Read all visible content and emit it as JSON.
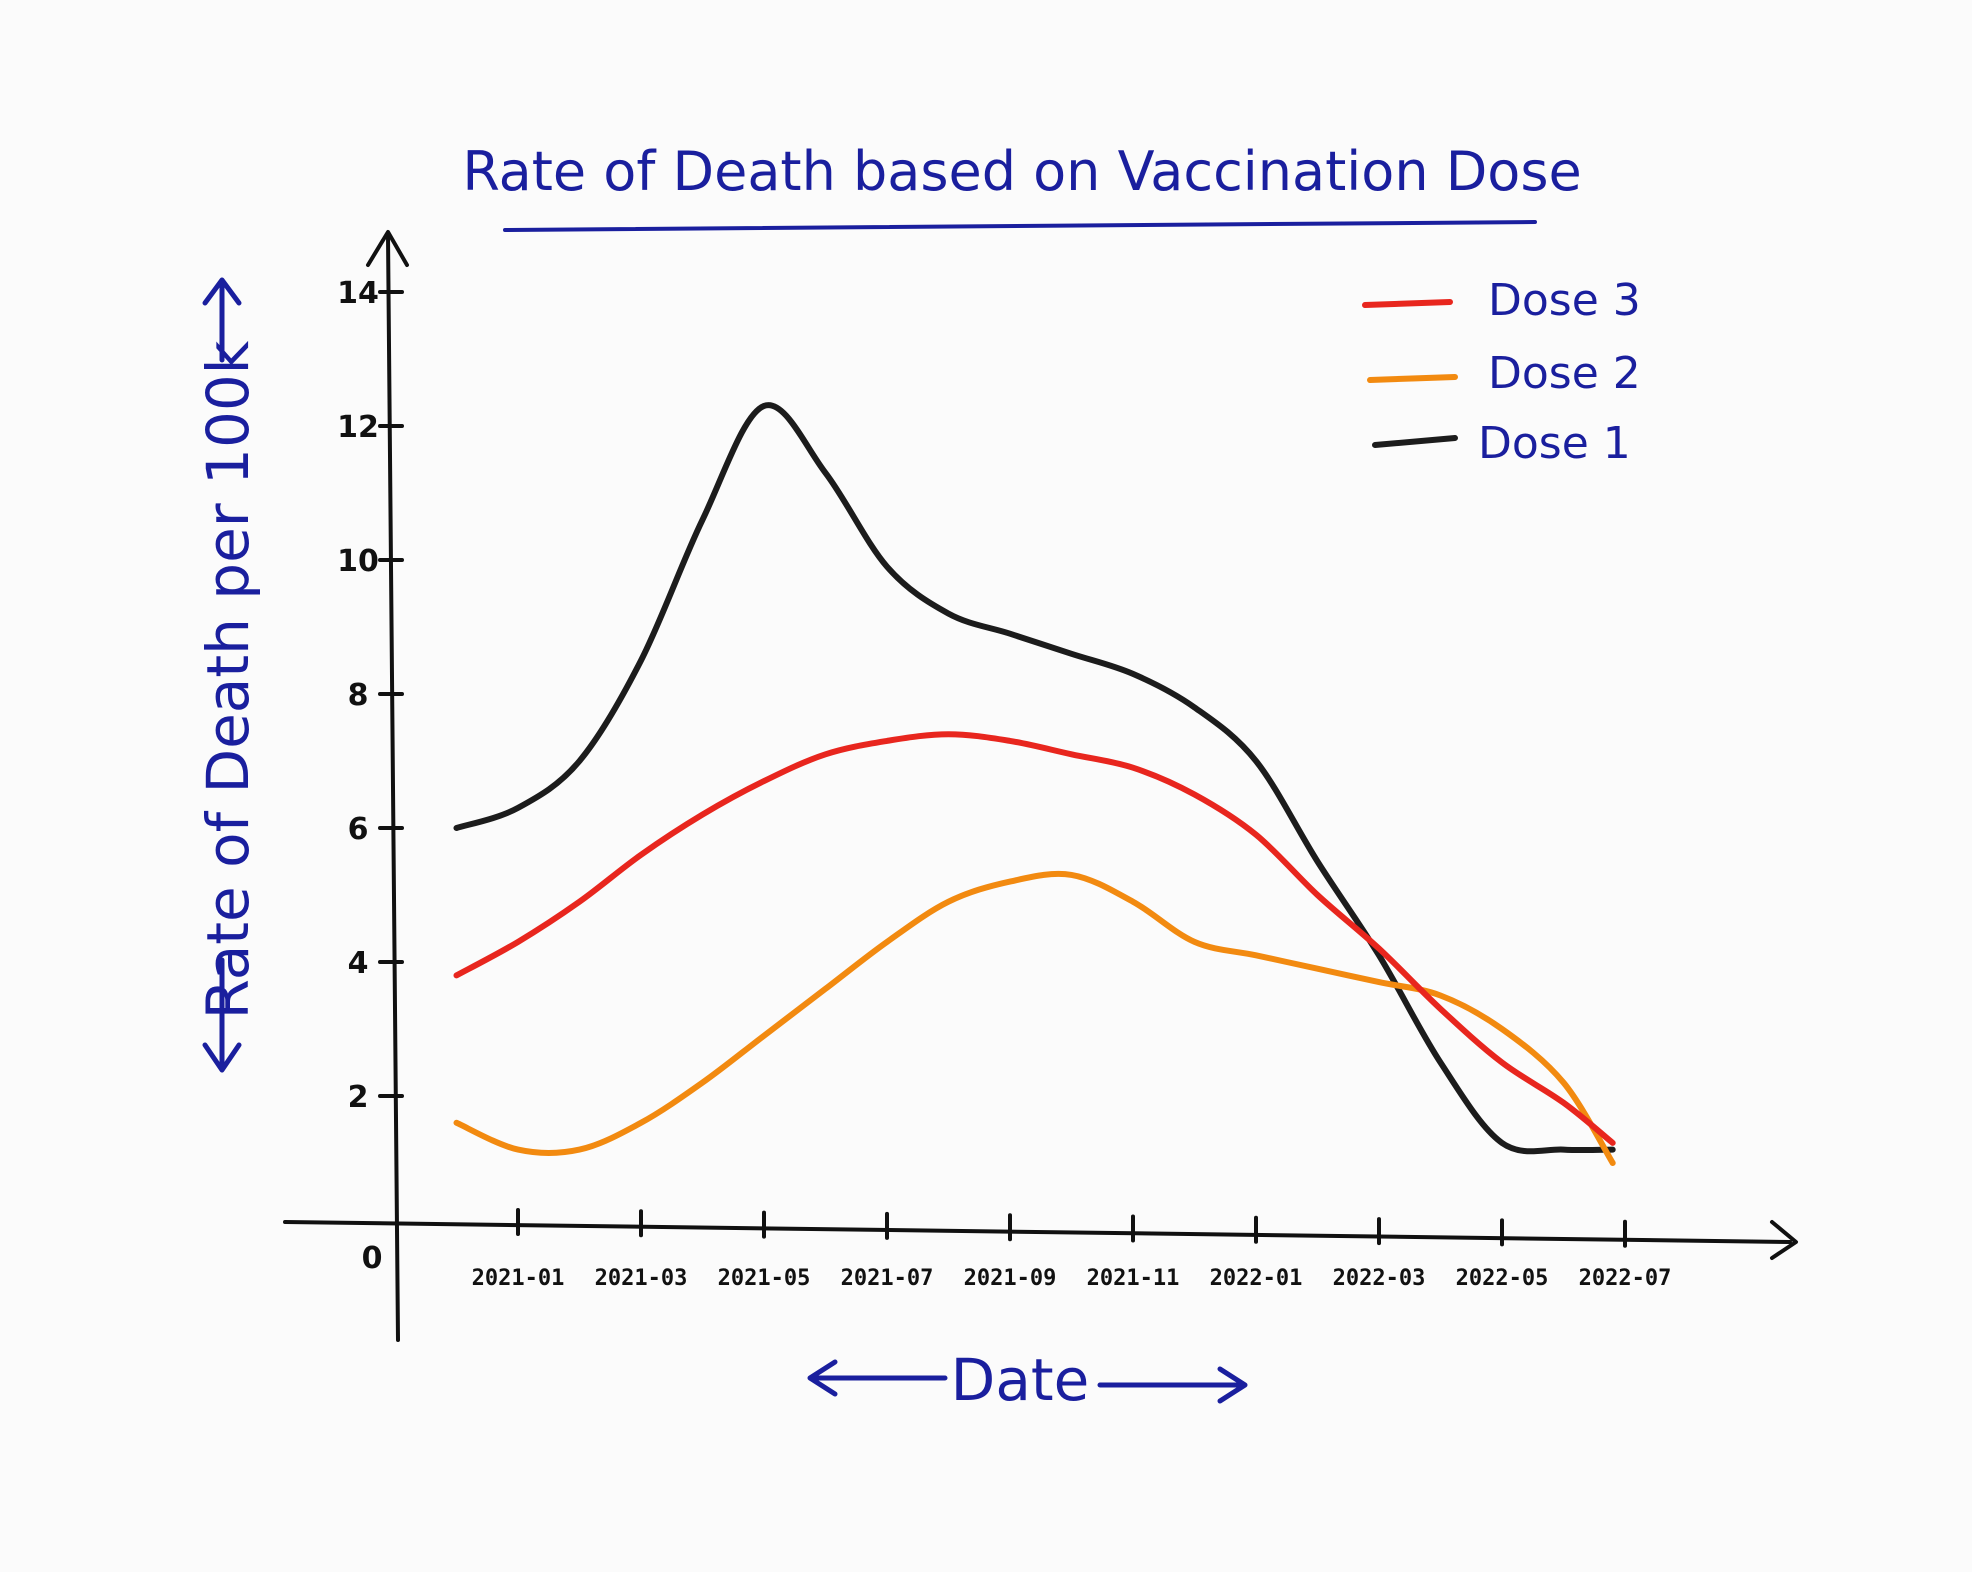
{
  "chart_data": {
    "type": "line",
    "title": "Rate of Death based on Vaccination Dose",
    "xlabel": "Date",
    "ylabel": "Rate of Death per 100k",
    "ylim": [
      0,
      14
    ],
    "y_ticks": [
      0,
      2,
      4,
      6,
      8,
      10,
      12,
      14
    ],
    "y_tick_labels": [
      "0",
      "2",
      "4",
      "6",
      "8",
      "10",
      "12",
      "14"
    ],
    "x_tick_labels": [
      "2021-01",
      "2021-03",
      "2021-05",
      "2021-07",
      "2021-09",
      "2021-11",
      "2022-01",
      "2022-03",
      "2022-05",
      "2022-07"
    ],
    "x": [
      -0.5,
      0,
      0.5,
      1,
      1.5,
      2,
      2.5,
      3,
      3.5,
      4,
      4.5,
      5,
      5.5,
      6,
      6.5,
      7,
      7.5,
      8,
      8.5,
      8.9
    ],
    "legend_position": "top-right",
    "series": [
      {
        "name": "Dose 3",
        "color": "#e8261e",
        "values": [
          3.8,
          4.3,
          4.9,
          5.6,
          6.2,
          6.7,
          7.1,
          7.3,
          7.4,
          7.3,
          7.1,
          6.9,
          6.5,
          5.9,
          5.0,
          4.2,
          3.3,
          2.5,
          1.9,
          1.3
        ]
      },
      {
        "name": "Dose 2",
        "color": "#f28a10",
        "values": [
          1.6,
          1.2,
          1.2,
          1.6,
          2.2,
          2.9,
          3.6,
          4.3,
          4.9,
          5.2,
          5.3,
          4.9,
          4.3,
          4.1,
          3.9,
          3.7,
          3.5,
          3.0,
          2.2,
          1.0
        ]
      },
      {
        "name": "Dose 1",
        "color": "#1c1c1c",
        "values": [
          6.0,
          6.3,
          7.0,
          8.5,
          10.6,
          12.3,
          11.3,
          9.9,
          9.2,
          8.9,
          8.6,
          8.3,
          7.8,
          7.0,
          5.5,
          4.1,
          2.5,
          1.3,
          1.2,
          1.2
        ]
      }
    ]
  }
}
